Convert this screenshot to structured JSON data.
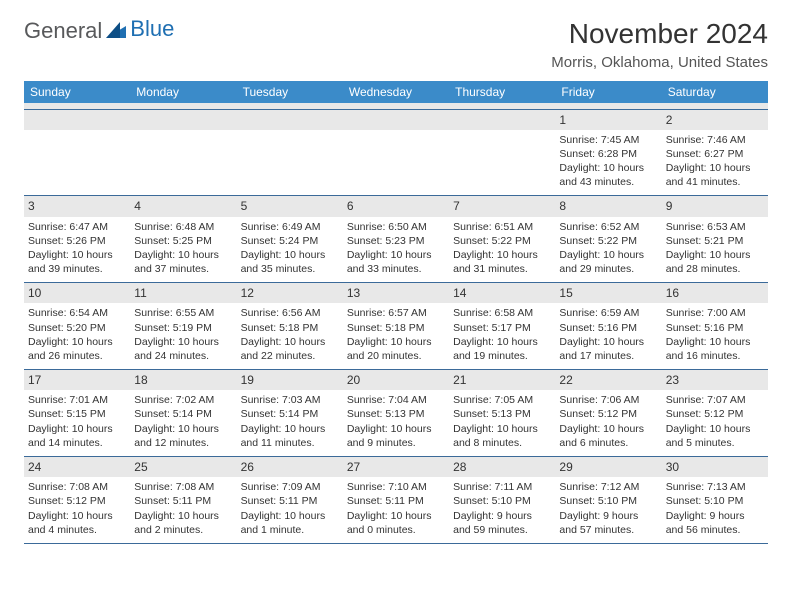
{
  "brand": {
    "part1": "General",
    "part2": "Blue"
  },
  "title": "November 2024",
  "location": "Morris, Oklahoma, United States",
  "colors": {
    "header_bg": "#3b8bc9",
    "header_text": "#ffffff",
    "border": "#3b6a99",
    "daynum_bg": "#e8e8e8",
    "text": "#333333",
    "brand_gray": "#58595b",
    "brand_blue": "#1f6fb2",
    "background": "#ffffff"
  },
  "day_names": [
    "Sunday",
    "Monday",
    "Tuesday",
    "Wednesday",
    "Thursday",
    "Friday",
    "Saturday"
  ],
  "weeks": [
    [
      null,
      null,
      null,
      null,
      null,
      {
        "n": "1",
        "sr": "Sunrise: 7:45 AM",
        "ss": "Sunset: 6:28 PM",
        "d1": "Daylight: 10 hours",
        "d2": "and 43 minutes."
      },
      {
        "n": "2",
        "sr": "Sunrise: 7:46 AM",
        "ss": "Sunset: 6:27 PM",
        "d1": "Daylight: 10 hours",
        "d2": "and 41 minutes."
      }
    ],
    [
      {
        "n": "3",
        "sr": "Sunrise: 6:47 AM",
        "ss": "Sunset: 5:26 PM",
        "d1": "Daylight: 10 hours",
        "d2": "and 39 minutes."
      },
      {
        "n": "4",
        "sr": "Sunrise: 6:48 AM",
        "ss": "Sunset: 5:25 PM",
        "d1": "Daylight: 10 hours",
        "d2": "and 37 minutes."
      },
      {
        "n": "5",
        "sr": "Sunrise: 6:49 AM",
        "ss": "Sunset: 5:24 PM",
        "d1": "Daylight: 10 hours",
        "d2": "and 35 minutes."
      },
      {
        "n": "6",
        "sr": "Sunrise: 6:50 AM",
        "ss": "Sunset: 5:23 PM",
        "d1": "Daylight: 10 hours",
        "d2": "and 33 minutes."
      },
      {
        "n": "7",
        "sr": "Sunrise: 6:51 AM",
        "ss": "Sunset: 5:22 PM",
        "d1": "Daylight: 10 hours",
        "d2": "and 31 minutes."
      },
      {
        "n": "8",
        "sr": "Sunrise: 6:52 AM",
        "ss": "Sunset: 5:22 PM",
        "d1": "Daylight: 10 hours",
        "d2": "and 29 minutes."
      },
      {
        "n": "9",
        "sr": "Sunrise: 6:53 AM",
        "ss": "Sunset: 5:21 PM",
        "d1": "Daylight: 10 hours",
        "d2": "and 28 minutes."
      }
    ],
    [
      {
        "n": "10",
        "sr": "Sunrise: 6:54 AM",
        "ss": "Sunset: 5:20 PM",
        "d1": "Daylight: 10 hours",
        "d2": "and 26 minutes."
      },
      {
        "n": "11",
        "sr": "Sunrise: 6:55 AM",
        "ss": "Sunset: 5:19 PM",
        "d1": "Daylight: 10 hours",
        "d2": "and 24 minutes."
      },
      {
        "n": "12",
        "sr": "Sunrise: 6:56 AM",
        "ss": "Sunset: 5:18 PM",
        "d1": "Daylight: 10 hours",
        "d2": "and 22 minutes."
      },
      {
        "n": "13",
        "sr": "Sunrise: 6:57 AM",
        "ss": "Sunset: 5:18 PM",
        "d1": "Daylight: 10 hours",
        "d2": "and 20 minutes."
      },
      {
        "n": "14",
        "sr": "Sunrise: 6:58 AM",
        "ss": "Sunset: 5:17 PM",
        "d1": "Daylight: 10 hours",
        "d2": "and 19 minutes."
      },
      {
        "n": "15",
        "sr": "Sunrise: 6:59 AM",
        "ss": "Sunset: 5:16 PM",
        "d1": "Daylight: 10 hours",
        "d2": "and 17 minutes."
      },
      {
        "n": "16",
        "sr": "Sunrise: 7:00 AM",
        "ss": "Sunset: 5:16 PM",
        "d1": "Daylight: 10 hours",
        "d2": "and 16 minutes."
      }
    ],
    [
      {
        "n": "17",
        "sr": "Sunrise: 7:01 AM",
        "ss": "Sunset: 5:15 PM",
        "d1": "Daylight: 10 hours",
        "d2": "and 14 minutes."
      },
      {
        "n": "18",
        "sr": "Sunrise: 7:02 AM",
        "ss": "Sunset: 5:14 PM",
        "d1": "Daylight: 10 hours",
        "d2": "and 12 minutes."
      },
      {
        "n": "19",
        "sr": "Sunrise: 7:03 AM",
        "ss": "Sunset: 5:14 PM",
        "d1": "Daylight: 10 hours",
        "d2": "and 11 minutes."
      },
      {
        "n": "20",
        "sr": "Sunrise: 7:04 AM",
        "ss": "Sunset: 5:13 PM",
        "d1": "Daylight: 10 hours",
        "d2": "and 9 minutes."
      },
      {
        "n": "21",
        "sr": "Sunrise: 7:05 AM",
        "ss": "Sunset: 5:13 PM",
        "d1": "Daylight: 10 hours",
        "d2": "and 8 minutes."
      },
      {
        "n": "22",
        "sr": "Sunrise: 7:06 AM",
        "ss": "Sunset: 5:12 PM",
        "d1": "Daylight: 10 hours",
        "d2": "and 6 minutes."
      },
      {
        "n": "23",
        "sr": "Sunrise: 7:07 AM",
        "ss": "Sunset: 5:12 PM",
        "d1": "Daylight: 10 hours",
        "d2": "and 5 minutes."
      }
    ],
    [
      {
        "n": "24",
        "sr": "Sunrise: 7:08 AM",
        "ss": "Sunset: 5:12 PM",
        "d1": "Daylight: 10 hours",
        "d2": "and 4 minutes."
      },
      {
        "n": "25",
        "sr": "Sunrise: 7:08 AM",
        "ss": "Sunset: 5:11 PM",
        "d1": "Daylight: 10 hours",
        "d2": "and 2 minutes."
      },
      {
        "n": "26",
        "sr": "Sunrise: 7:09 AM",
        "ss": "Sunset: 5:11 PM",
        "d1": "Daylight: 10 hours",
        "d2": "and 1 minute."
      },
      {
        "n": "27",
        "sr": "Sunrise: 7:10 AM",
        "ss": "Sunset: 5:11 PM",
        "d1": "Daylight: 10 hours",
        "d2": "and 0 minutes."
      },
      {
        "n": "28",
        "sr": "Sunrise: 7:11 AM",
        "ss": "Sunset: 5:10 PM",
        "d1": "Daylight: 9 hours",
        "d2": "and 59 minutes."
      },
      {
        "n": "29",
        "sr": "Sunrise: 7:12 AM",
        "ss": "Sunset: 5:10 PM",
        "d1": "Daylight: 9 hours",
        "d2": "and 57 minutes."
      },
      {
        "n": "30",
        "sr": "Sunrise: 7:13 AM",
        "ss": "Sunset: 5:10 PM",
        "d1": "Daylight: 9 hours",
        "d2": "and 56 minutes."
      }
    ]
  ]
}
